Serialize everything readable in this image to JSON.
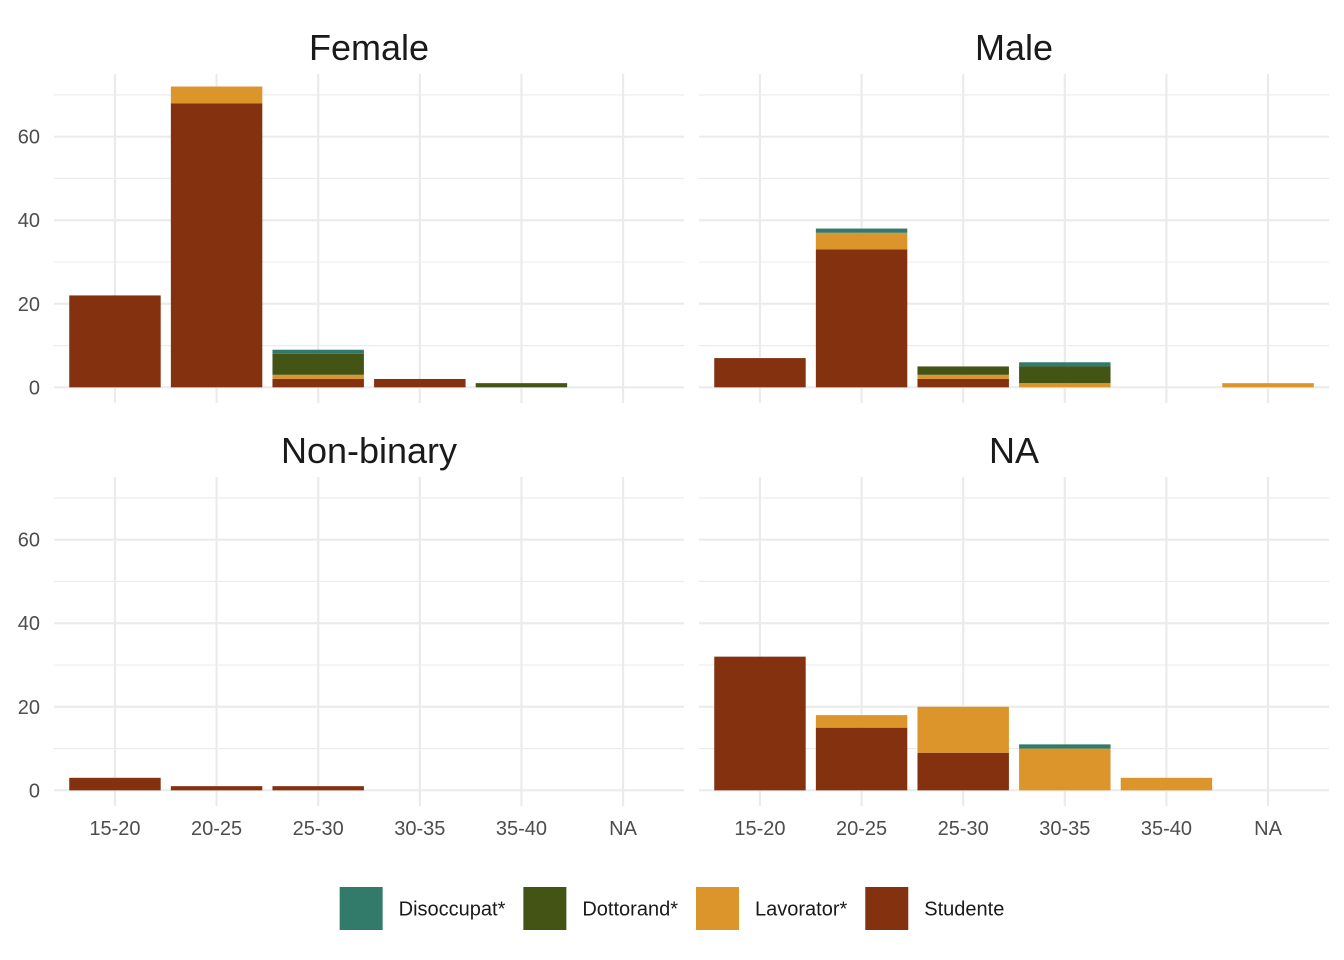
{
  "colors": {
    "Disoccupat*": "#327A6A",
    "Dottorand*": "#445414",
    "Lavorator*": "#DC952B",
    "Studente": "#84310F"
  },
  "chart_data": {
    "type": "bar",
    "stacked": true,
    "facet_layout": "2x2",
    "categories": [
      "15-20",
      "20-25",
      "25-30",
      "30-35",
      "35-40",
      "NA"
    ],
    "ylim": [
      0,
      75
    ],
    "y_ticks": [
      0,
      20,
      40,
      60
    ],
    "grid": true,
    "legend_position": "bottom",
    "legend": [
      "Disoccupat*",
      "Dottorand*",
      "Lavorator*",
      "Studente"
    ],
    "facets": [
      {
        "title": "Female",
        "series": [
          {
            "name": "Studente",
            "values": [
              22,
              68,
              2,
              2,
              0,
              0
            ]
          },
          {
            "name": "Lavorator*",
            "values": [
              0,
              4,
              1,
              0,
              0,
              0
            ]
          },
          {
            "name": "Dottorand*",
            "values": [
              0,
              0,
              5,
              0,
              1,
              0
            ]
          },
          {
            "name": "Disoccupat*",
            "values": [
              0,
              0,
              1,
              0,
              0,
              0
            ]
          }
        ]
      },
      {
        "title": "Male",
        "series": [
          {
            "name": "Studente",
            "values": [
              7,
              33,
              2,
              0,
              0,
              0
            ]
          },
          {
            "name": "Lavorator*",
            "values": [
              0,
              4,
              1,
              1,
              0,
              1
            ]
          },
          {
            "name": "Dottorand*",
            "values": [
              0,
              0,
              2,
              4,
              0,
              0
            ]
          },
          {
            "name": "Disoccupat*",
            "values": [
              0,
              1,
              0,
              1,
              0,
              0
            ]
          }
        ]
      },
      {
        "title": "Non-binary",
        "series": [
          {
            "name": "Studente",
            "values": [
              3,
              1,
              1,
              0,
              0,
              0
            ]
          },
          {
            "name": "Lavorator*",
            "values": [
              0,
              0,
              0,
              0,
              0,
              0
            ]
          },
          {
            "name": "Dottorand*",
            "values": [
              0,
              0,
              0,
              0,
              0,
              0
            ]
          },
          {
            "name": "Disoccupat*",
            "values": [
              0,
              0,
              0,
              0,
              0,
              0
            ]
          }
        ]
      },
      {
        "title": "NA",
        "series": [
          {
            "name": "Studente",
            "values": [
              32,
              15,
              9,
              0,
              0,
              0
            ]
          },
          {
            "name": "Lavorator*",
            "values": [
              0,
              3,
              11,
              10,
              3,
              0
            ]
          },
          {
            "name": "Dottorand*",
            "values": [
              0,
              0,
              0,
              0,
              0,
              0
            ]
          },
          {
            "name": "Disoccupat*",
            "values": [
              0,
              0,
              0,
              1,
              0,
              0
            ]
          }
        ]
      }
    ]
  }
}
